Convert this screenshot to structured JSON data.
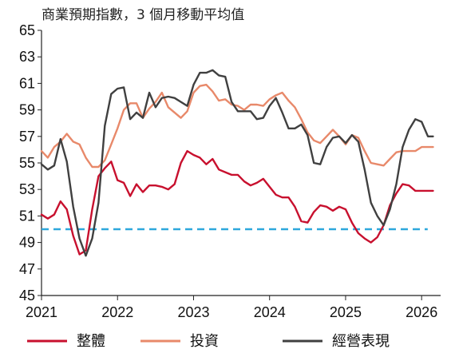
{
  "chart_data": {
    "type": "line",
    "title": "商業預期指數，3 個月移動平均值",
    "xlabel": "",
    "ylabel": "",
    "ylim": [
      45,
      65
    ],
    "yticks": [
      45,
      47,
      49,
      51,
      53,
      55,
      57,
      59,
      61,
      63,
      65
    ],
    "ytick_labels": [
      "45",
      "47",
      "49",
      "51",
      "53",
      "55",
      "57",
      "59",
      "61",
      "63",
      "65"
    ],
    "xlim": [
      2021.0,
      2026.25
    ],
    "xticks": [
      2021,
      2022,
      2023,
      2024,
      2025,
      2026
    ],
    "xtick_labels": [
      "2021",
      "2022",
      "2023",
      "2024",
      "2025",
      "2026"
    ],
    "grid": false,
    "legend_position": "bottom",
    "reference_line": {
      "value": 50,
      "color": "#2ea8dc",
      "style": "dashed"
    },
    "x": [
      2021.0,
      2021.083,
      2021.167,
      2021.25,
      2021.333,
      2021.417,
      2021.5,
      2021.583,
      2021.667,
      2021.75,
      2021.833,
      2021.917,
      2022.0,
      2022.083,
      2022.167,
      2022.25,
      2022.333,
      2022.417,
      2022.5,
      2022.583,
      2022.667,
      2022.75,
      2022.833,
      2022.917,
      2023.0,
      2023.083,
      2023.167,
      2023.25,
      2023.333,
      2023.417,
      2023.5,
      2023.583,
      2023.667,
      2023.75,
      2023.833,
      2023.917,
      2024.0,
      2024.083,
      2024.167,
      2024.25,
      2024.333,
      2024.417,
      2024.5,
      2024.583,
      2024.667,
      2024.75,
      2024.833,
      2024.917,
      2025.0,
      2025.083,
      2025.167,
      2025.25,
      2025.333,
      2025.417,
      2025.5,
      2025.583,
      2025.667,
      2025.75,
      2025.833,
      2025.917,
      2026.0,
      2026.083,
      2026.15
    ],
    "series": [
      {
        "name": "整體",
        "color": "#c8102e",
        "values": [
          51.1,
          50.8,
          51.1,
          52.1,
          51.5,
          49.5,
          48.1,
          48.4,
          51.5,
          54.0,
          54.6,
          55.1,
          53.7,
          53.5,
          52.5,
          53.4,
          52.8,
          53.3,
          53.3,
          53.2,
          53.0,
          53.4,
          55.0,
          55.9,
          55.6,
          55.4,
          54.9,
          55.3,
          54.5,
          54.3,
          54.1,
          54.1,
          53.6,
          53.3,
          53.5,
          53.8,
          53.2,
          52.6,
          52.4,
          52.4,
          51.7,
          50.6,
          50.5,
          51.3,
          51.8,
          51.7,
          51.4,
          51.7,
          51.5,
          50.5,
          49.7,
          49.3,
          49.0,
          49.4,
          50.3,
          51.8,
          52.7,
          53.4,
          53.3,
          52.9,
          52.9,
          52.9,
          52.9
        ]
      },
      {
        "name": "投資",
        "color": "#e8896a",
        "values": [
          55.9,
          55.4,
          56.2,
          56.6,
          57.2,
          56.6,
          56.4,
          55.4,
          54.7,
          54.7,
          55.2,
          56.4,
          57.6,
          59.0,
          59.5,
          59.5,
          58.4,
          59.1,
          59.6,
          60.3,
          59.2,
          58.8,
          58.4,
          58.9,
          60.3,
          60.8,
          60.9,
          60.4,
          59.7,
          59.8,
          59.4,
          59.3,
          59.0,
          59.4,
          59.4,
          59.3,
          59.8,
          60.1,
          60.3,
          59.7,
          59.2,
          58.3,
          57.3,
          56.7,
          56.5,
          57.0,
          57.5,
          57.0,
          56.4,
          57.1,
          56.9,
          55.9,
          55.0,
          54.9,
          54.8,
          55.3,
          55.8,
          55.9,
          55.9,
          55.9,
          56.2,
          56.2,
          56.2
        ]
      },
      {
        "name": "經營表現",
        "color": "#404040",
        "values": [
          54.9,
          54.5,
          54.8,
          56.8,
          55.1,
          51.7,
          49.3,
          48.0,
          49.3,
          52.0,
          57.8,
          60.2,
          60.6,
          60.7,
          58.3,
          58.8,
          58.4,
          60.3,
          59.2,
          59.9,
          60.0,
          59.9,
          59.6,
          59.3,
          60.9,
          61.8,
          61.8,
          62.0,
          61.6,
          61.5,
          59.6,
          58.9,
          58.9,
          58.9,
          58.3,
          58.4,
          59.3,
          59.9,
          58.8,
          57.6,
          57.6,
          57.9,
          57.1,
          55.0,
          54.9,
          56.2,
          56.9,
          57.0,
          56.5,
          57.1,
          56.6,
          54.5,
          52.0,
          51.0,
          50.3,
          51.5,
          53.4,
          56.2,
          57.5,
          58.3,
          58.1,
          57.0,
          57.0
        ]
      }
    ]
  },
  "legend": [
    {
      "label": "整體",
      "color": "#c8102e"
    },
    {
      "label": "投資",
      "color": "#e8896a"
    },
    {
      "label": "經營表現",
      "color": "#404040"
    }
  ]
}
